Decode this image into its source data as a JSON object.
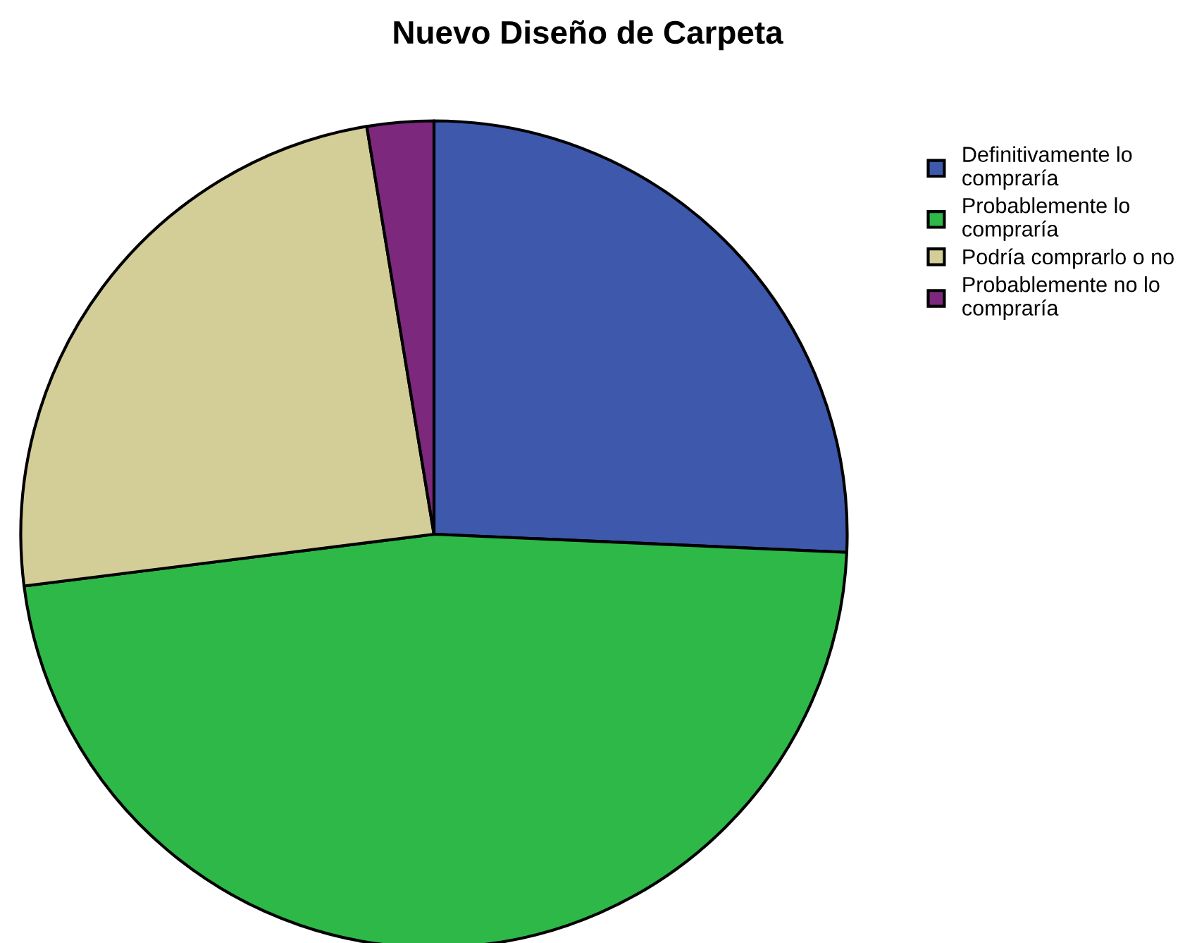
{
  "chart_data": {
    "type": "pie",
    "title": "Nuevo Diseño de Carpeta",
    "categories": [
      "Definitivamente lo compraría",
      "Probablemente lo compraría",
      "Podría comprarlo o no",
      "Probablemente no lo compraría"
    ],
    "values": [
      25.7,
      47.3,
      24.4,
      2.6
    ],
    "colors": [
      "#3e58ac",
      "#2eb848",
      "#d3ce97",
      "#7c287d"
    ],
    "legend": "top right"
  }
}
